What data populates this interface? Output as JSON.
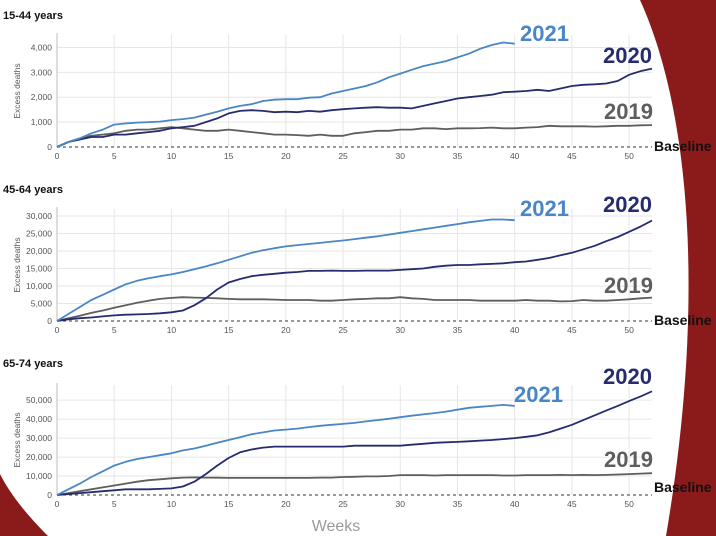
{
  "colors": {
    "c2021": "#4a86c5",
    "c2020": "#262c6e",
    "c2019": "#5e5e5e",
    "frame": "#8b1a1a"
  },
  "xaxis_title": "Weeks",
  "baseline_label": "Baseline",
  "chart_data": [
    {
      "type": "line",
      "title": "15-44 years",
      "ylabel": "Excess deaths",
      "ylim": [
        0,
        4500
      ],
      "yticks": [
        0,
        1000,
        2000,
        3000,
        4000
      ],
      "ytick_labels": [
        "0",
        "1,000",
        "2,000",
        "3,000",
        "4,000"
      ],
      "xlim": [
        0,
        52
      ],
      "xticks": [
        0,
        5,
        10,
        15,
        20,
        25,
        30,
        35,
        40,
        45,
        50
      ],
      "xtick_labels": [
        "0",
        "5",
        "10",
        "15",
        "20",
        "25",
        "30",
        "35",
        "40",
        "45",
        "50"
      ],
      "grid": true,
      "series": [
        {
          "name": "2021",
          "x": [
            0,
            1,
            2,
            3,
            4,
            5,
            6,
            7,
            8,
            9,
            10,
            11,
            12,
            13,
            14,
            15,
            16,
            17,
            18,
            19,
            20,
            21,
            22,
            23,
            24,
            25,
            26,
            27,
            28,
            29,
            30,
            31,
            32,
            33,
            34,
            35,
            36,
            37,
            38,
            39,
            40
          ],
          "values": [
            0,
            200,
            350,
            550,
            700,
            900,
            950,
            980,
            1000,
            1020,
            1080,
            1120,
            1180,
            1300,
            1420,
            1550,
            1650,
            1720,
            1850,
            1900,
            1920,
            1920,
            1980,
            2000,
            2150,
            2250,
            2350,
            2450,
            2600,
            2800,
            2950,
            3100,
            3250,
            3350,
            3450,
            3600,
            3750,
            3950,
            4100,
            4200,
            4150
          ]
        },
        {
          "name": "2020",
          "x": [
            0,
            1,
            2,
            3,
            4,
            5,
            6,
            7,
            8,
            9,
            10,
            11,
            12,
            13,
            14,
            15,
            16,
            17,
            18,
            19,
            20,
            21,
            22,
            23,
            24,
            25,
            26,
            27,
            28,
            29,
            30,
            31,
            32,
            33,
            34,
            35,
            36,
            37,
            38,
            39,
            40,
            41,
            42,
            43,
            44,
            45,
            46,
            47,
            48,
            49,
            50,
            51,
            52
          ],
          "values": [
            0,
            200,
            300,
            400,
            400,
            500,
            500,
            550,
            600,
            650,
            750,
            800,
            850,
            1000,
            1150,
            1350,
            1450,
            1480,
            1450,
            1400,
            1420,
            1400,
            1450,
            1420,
            1480,
            1520,
            1550,
            1580,
            1600,
            1580,
            1580,
            1550,
            1650,
            1750,
            1850,
            1950,
            2000,
            2050,
            2100,
            2200,
            2220,
            2250,
            2300,
            2250,
            2350,
            2450,
            2500,
            2520,
            2550,
            2650,
            2900,
            3050,
            3150
          ]
        },
        {
          "name": "2019",
          "x": [
            0,
            1,
            2,
            3,
            4,
            5,
            6,
            7,
            8,
            9,
            10,
            11,
            12,
            13,
            14,
            15,
            16,
            17,
            18,
            19,
            20,
            21,
            22,
            23,
            24,
            25,
            26,
            27,
            28,
            29,
            30,
            31,
            32,
            33,
            34,
            35,
            36,
            37,
            38,
            39,
            40,
            41,
            42,
            43,
            44,
            45,
            46,
            47,
            48,
            49,
            50,
            51,
            52
          ],
          "values": [
            0,
            200,
            350,
            450,
            500,
            550,
            650,
            700,
            700,
            750,
            800,
            750,
            700,
            650,
            650,
            700,
            650,
            600,
            550,
            500,
            500,
            480,
            450,
            500,
            450,
            450,
            550,
            600,
            650,
            650,
            700,
            700,
            750,
            750,
            720,
            750,
            750,
            760,
            780,
            750,
            750,
            780,
            800,
            850,
            830,
            830,
            830,
            820,
            830,
            850,
            850,
            870,
            880
          ]
        }
      ]
    },
    {
      "type": "line",
      "title": "45-64 years",
      "ylabel": "Excess deaths",
      "ylim": [
        0,
        32000
      ],
      "yticks": [
        0,
        5000,
        10000,
        15000,
        20000,
        25000,
        30000
      ],
      "ytick_labels": [
        "0",
        "5,000",
        "10,000",
        "15,000",
        "20,000",
        "25,000",
        "30,000"
      ],
      "xlim": [
        0,
        52
      ],
      "xticks": [
        0,
        5,
        10,
        15,
        20,
        25,
        30,
        35,
        40,
        45,
        50
      ],
      "xtick_labels": [
        "0",
        "5",
        "10",
        "15",
        "20",
        "25",
        "30",
        "35",
        "40",
        "45",
        "50"
      ],
      "grid": true,
      "series": [
        {
          "name": "2021",
          "x": [
            0,
            1,
            2,
            3,
            4,
            5,
            6,
            7,
            8,
            9,
            10,
            11,
            12,
            13,
            14,
            15,
            16,
            17,
            18,
            19,
            20,
            21,
            22,
            23,
            24,
            25,
            26,
            27,
            28,
            29,
            30,
            31,
            32,
            33,
            34,
            35,
            36,
            37,
            38,
            39,
            40
          ],
          "values": [
            0,
            2000,
            4000,
            6000,
            7500,
            9000,
            10500,
            11500,
            12200,
            12800,
            13300,
            14000,
            14800,
            15600,
            16500,
            17500,
            18500,
            19500,
            20200,
            20800,
            21300,
            21700,
            22000,
            22300,
            22700,
            23000,
            23400,
            23800,
            24200,
            24700,
            25200,
            25700,
            26200,
            26700,
            27200,
            27700,
            28200,
            28600,
            29000,
            29000,
            28800
          ]
        },
        {
          "name": "2020",
          "x": [
            0,
            1,
            2,
            3,
            4,
            5,
            6,
            7,
            8,
            9,
            10,
            11,
            12,
            13,
            14,
            15,
            16,
            17,
            18,
            19,
            20,
            21,
            22,
            23,
            24,
            25,
            26,
            27,
            28,
            29,
            30,
            31,
            32,
            33,
            34,
            35,
            36,
            37,
            38,
            39,
            40,
            41,
            42,
            43,
            44,
            45,
            46,
            47,
            48,
            49,
            50,
            51,
            52
          ],
          "values": [
            0,
            500,
            800,
            1000,
            1300,
            1600,
            1800,
            1900,
            2000,
            2200,
            2500,
            3000,
            4500,
            6500,
            9000,
            11000,
            12000,
            12800,
            13200,
            13500,
            13800,
            14000,
            14300,
            14300,
            14400,
            14300,
            14300,
            14400,
            14400,
            14400,
            14600,
            14800,
            15000,
            15500,
            15800,
            16000,
            16000,
            16200,
            16300,
            16500,
            16800,
            17000,
            17500,
            18000,
            18800,
            19500,
            20500,
            21500,
            22800,
            24000,
            25500,
            27000,
            28700
          ]
        },
        {
          "name": "2019",
          "x": [
            0,
            1,
            2,
            3,
            4,
            5,
            6,
            7,
            8,
            9,
            10,
            11,
            12,
            13,
            14,
            15,
            16,
            17,
            18,
            19,
            20,
            21,
            22,
            23,
            24,
            25,
            26,
            27,
            28,
            29,
            30,
            31,
            32,
            33,
            34,
            35,
            36,
            37,
            38,
            39,
            40,
            41,
            42,
            43,
            44,
            45,
            46,
            47,
            48,
            49,
            50,
            51,
            52
          ],
          "values": [
            0,
            800,
            1500,
            2300,
            3000,
            3800,
            4500,
            5200,
            5800,
            6300,
            6600,
            6800,
            6700,
            6600,
            6500,
            6300,
            6200,
            6200,
            6200,
            6100,
            6000,
            6000,
            6000,
            5800,
            5800,
            6000,
            6200,
            6300,
            6500,
            6500,
            6800,
            6500,
            6300,
            6000,
            6000,
            6000,
            6000,
            5800,
            5800,
            5800,
            5800,
            6000,
            5800,
            5800,
            5600,
            5700,
            6000,
            5800,
            5800,
            6000,
            6200,
            6500,
            6700
          ]
        }
      ]
    },
    {
      "type": "line",
      "title": "65-74 years",
      "ylabel": "Excess deaths",
      "ylim": [
        0,
        58000
      ],
      "yticks": [
        0,
        10000,
        20000,
        30000,
        40000,
        50000
      ],
      "ytick_labels": [
        "0",
        "10,000",
        "20,000",
        "30,000",
        "40,000",
        "50,000"
      ],
      "xlim": [
        0,
        52
      ],
      "xticks": [
        0,
        5,
        10,
        15,
        20,
        25,
        30,
        35,
        40,
        45,
        50
      ],
      "xtick_labels": [
        "0",
        "5",
        "10",
        "15",
        "20",
        "25",
        "30",
        "35",
        "40",
        "45",
        "50"
      ],
      "grid": true,
      "series": [
        {
          "name": "2021",
          "x": [
            0,
            1,
            2,
            3,
            4,
            5,
            6,
            7,
            8,
            9,
            10,
            11,
            12,
            13,
            14,
            15,
            16,
            17,
            18,
            19,
            20,
            21,
            22,
            23,
            24,
            25,
            26,
            27,
            28,
            29,
            30,
            31,
            32,
            33,
            34,
            35,
            36,
            37,
            38,
            39,
            40
          ],
          "values": [
            0,
            3000,
            6000,
            9500,
            12500,
            15500,
            17500,
            19000,
            20000,
            21000,
            22000,
            23500,
            24500,
            26000,
            27500,
            29000,
            30500,
            32000,
            33000,
            34000,
            34500,
            35000,
            35800,
            36500,
            37000,
            37500,
            38000,
            38800,
            39500,
            40200,
            41000,
            41800,
            42500,
            43200,
            44000,
            45000,
            46000,
            46500,
            47000,
            47500,
            47000
          ]
        },
        {
          "name": "2020",
          "x": [
            0,
            1,
            2,
            3,
            4,
            5,
            6,
            7,
            8,
            9,
            10,
            11,
            12,
            13,
            14,
            15,
            16,
            17,
            18,
            19,
            20,
            21,
            22,
            23,
            24,
            25,
            26,
            27,
            28,
            29,
            30,
            31,
            32,
            33,
            34,
            35,
            36,
            37,
            38,
            39,
            40,
            41,
            42,
            43,
            44,
            45,
            46,
            47,
            48,
            49,
            50,
            51,
            52
          ],
          "values": [
            0,
            500,
            1000,
            1500,
            2000,
            2500,
            3000,
            3000,
            3000,
            3200,
            3500,
            4500,
            7000,
            11000,
            15500,
            19500,
            22500,
            24000,
            25000,
            25500,
            25500,
            25500,
            25500,
            25500,
            25500,
            25500,
            26000,
            26000,
            26000,
            26000,
            26000,
            26500,
            27000,
            27500,
            27800,
            28000,
            28300,
            28700,
            29000,
            29500,
            30000,
            30700,
            31500,
            33000,
            35000,
            37000,
            39500,
            42000,
            44500,
            47000,
            49500,
            52000,
            54700
          ]
        },
        {
          "name": "2019",
          "x": [
            0,
            1,
            2,
            3,
            4,
            5,
            6,
            7,
            8,
            9,
            10,
            11,
            12,
            13,
            14,
            15,
            16,
            17,
            18,
            19,
            20,
            21,
            22,
            23,
            24,
            25,
            26,
            27,
            28,
            29,
            30,
            31,
            32,
            33,
            34,
            35,
            36,
            37,
            38,
            39,
            40,
            41,
            42,
            43,
            44,
            45,
            46,
            47,
            48,
            49,
            50,
            51,
            52
          ],
          "values": [
            0,
            1000,
            2000,
            3000,
            4000,
            5000,
            6000,
            7000,
            7800,
            8300,
            8800,
            9200,
            9300,
            9200,
            9100,
            9000,
            9000,
            9000,
            9000,
            9000,
            9000,
            9000,
            9000,
            9200,
            9200,
            9500,
            9600,
            9800,
            9800,
            10000,
            10500,
            10500,
            10500,
            10300,
            10500,
            10500,
            10500,
            10500,
            10500,
            10300,
            10300,
            10500,
            10500,
            10500,
            10600,
            10500,
            10600,
            10500,
            10600,
            10800,
            11000,
            11300,
            11500
          ]
        }
      ]
    }
  ]
}
